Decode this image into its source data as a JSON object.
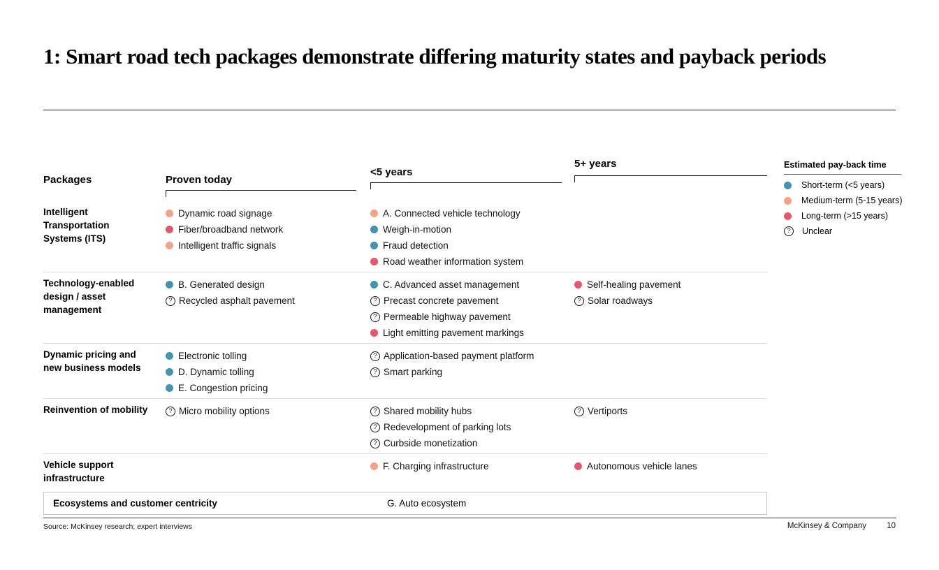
{
  "slide": {
    "title": "1: Smart road tech packages demonstrate differing maturity states and payback periods"
  },
  "palette": {
    "short": "#4394AE",
    "medium": "#F6A287",
    "long": "#E4586E"
  },
  "matrix": {
    "columns_header": {
      "packages": "Packages",
      "proven_today": "Proven today",
      "under_5_years": "<5 years",
      "over_5_years": "5+ years"
    },
    "rows": [
      {
        "package": "Intelligent Transportation Systems (ITS)",
        "proven": [
          {
            "payback": "medium",
            "label": "Dynamic road signage"
          },
          {
            "payback": "long",
            "label": "Fiber/broadband network"
          },
          {
            "payback": "medium",
            "label": "Intelligent traffic signals"
          }
        ],
        "lt5": [
          {
            "payback": "medium",
            "label": "A. Connected vehicle technology"
          },
          {
            "payback": "short",
            "label": "Weigh-in-motion"
          },
          {
            "payback": "short",
            "label": "Fraud detection"
          },
          {
            "payback": "long",
            "label": "Road weather information system"
          }
        ],
        "gt5": []
      },
      {
        "package": "Technology-enabled design / asset management",
        "proven": [
          {
            "payback": "short",
            "label": "B. Generated design"
          },
          {
            "payback": "unclear",
            "label": "Recycled asphalt pavement"
          }
        ],
        "lt5": [
          {
            "payback": "short",
            "label": "C. Advanced asset management"
          },
          {
            "payback": "unclear",
            "label": "Precast concrete pavement"
          },
          {
            "payback": "unclear",
            "label": "Permeable highway pavement"
          },
          {
            "payback": "long",
            "label": "Light emitting pavement markings"
          }
        ],
        "gt5": [
          {
            "payback": "long",
            "label": "Self-healing pavement"
          },
          {
            "payback": "unclear",
            "label": "Solar roadways"
          }
        ]
      },
      {
        "package": "Dynamic pricing and new business models",
        "proven": [
          {
            "payback": "short",
            "label": "Electronic tolling"
          },
          {
            "payback": "short",
            "label": "D. Dynamic tolling"
          },
          {
            "payback": "short",
            "label": "E. Congestion pricing"
          }
        ],
        "lt5": [
          {
            "payback": "unclear",
            "label": "Application-based payment platform"
          },
          {
            "payback": "unclear",
            "label": "Smart parking"
          }
        ],
        "gt5": []
      },
      {
        "package": "Reinvention of mobility",
        "proven": [
          {
            "payback": "unclear",
            "label": "Micro mobility options"
          }
        ],
        "lt5": [
          {
            "payback": "unclear",
            "label": "Shared mobility hubs"
          },
          {
            "payback": "unclear",
            "label": "Redevelopment of parking lots"
          },
          {
            "payback": "unclear",
            "label": "Curbside monetization"
          }
        ],
        "gt5": [
          {
            "payback": "unclear",
            "label": "Vertiports"
          }
        ]
      },
      {
        "package": "Vehicle support infrastructure",
        "proven": [],
        "lt5": [
          {
            "payback": "medium",
            "label": "F. Charging infrastructure"
          }
        ],
        "gt5": [
          {
            "payback": "long",
            "label": "Autonomous vehicle lanes"
          }
        ]
      }
    ],
    "ecosystem_row": {
      "package": "Ecosystems and customer centricity",
      "item": "G. Auto ecosystem"
    }
  },
  "legend": {
    "title": "Estimated pay-back time",
    "unclear_symbol": "?",
    "items": [
      {
        "payback": "short",
        "label": "Short-term (<5 years)"
      },
      {
        "payback": "medium",
        "label": "Medium-term (5-15 years)"
      },
      {
        "payback": "long",
        "label": "Long-term (>15 years)"
      },
      {
        "payback": "unclear",
        "label": "Unclear"
      }
    ]
  },
  "footer": {
    "source": "Source: McKinsey research; expert interviews",
    "brand": "McKinsey & Company",
    "page": "10"
  }
}
